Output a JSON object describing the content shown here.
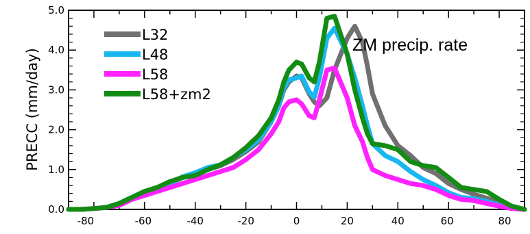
{
  "chart_data": {
    "type": "line",
    "title": "",
    "annotation": "ZM precip. rate",
    "xlabel": "",
    "ylabel": "PRECC (mm/day)",
    "xlim": [
      -90,
      90
    ],
    "ylim": [
      0,
      5
    ],
    "x_tick_labels": [
      "-80",
      "-60",
      "-40",
      "-20",
      "0",
      "20",
      "40",
      "60",
      "80"
    ],
    "x_tick_values": [
      -80,
      -60,
      -40,
      -20,
      0,
      20,
      40,
      60,
      80
    ],
    "y_tick_labels": [
      "0.0",
      "1.0",
      "2.0",
      "3.0",
      "4.0",
      "5.0"
    ],
    "y_tick_values": [
      0,
      1,
      2,
      3,
      4,
      5
    ],
    "legend_position": "top-left",
    "x": [
      -90,
      -85,
      -80,
      -75,
      -70,
      -65,
      -60,
      -55,
      -50,
      -45,
      -40,
      -35,
      -30,
      -25,
      -20,
      -15,
      -10,
      -7,
      -5,
      -3,
      0,
      2,
      5,
      7,
      9,
      12,
      15,
      20,
      23,
      26,
      28,
      30,
      35,
      40,
      45,
      50,
      55,
      60,
      65,
      70,
      75,
      80,
      85,
      90
    ],
    "series": [
      {
        "name": "L32",
        "color": "#707070",
        "values": [
          0.0,
          0.0,
          0.02,
          0.05,
          0.15,
          0.3,
          0.45,
          0.55,
          0.65,
          0.8,
          0.88,
          1.0,
          1.1,
          1.25,
          1.45,
          1.7,
          2.2,
          2.6,
          3.0,
          3.2,
          3.35,
          3.3,
          2.9,
          2.7,
          2.6,
          2.8,
          3.5,
          4.3,
          4.6,
          4.2,
          3.6,
          2.9,
          2.1,
          1.6,
          1.35,
          1.05,
          0.9,
          0.65,
          0.5,
          0.38,
          0.28,
          0.18,
          0.05,
          0.0
        ]
      },
      {
        "name": "L48",
        "color": "#19b7ef",
        "values": [
          0.0,
          0.0,
          0.02,
          0.05,
          0.15,
          0.3,
          0.45,
          0.55,
          0.65,
          0.82,
          0.92,
          1.05,
          1.12,
          1.3,
          1.5,
          1.75,
          2.2,
          2.6,
          3.05,
          3.25,
          3.3,
          3.35,
          2.95,
          2.82,
          3.3,
          4.3,
          4.55,
          3.9,
          3.3,
          2.6,
          2.1,
          1.65,
          1.35,
          1.2,
          0.95,
          0.75,
          0.6,
          0.42,
          0.3,
          0.27,
          0.2,
          0.1,
          0.02,
          0.0
        ]
      },
      {
        "name": "L58",
        "color": "#ff22ff",
        "values": [
          0.0,
          0.0,
          0.02,
          0.05,
          0.1,
          0.25,
          0.35,
          0.45,
          0.55,
          0.65,
          0.75,
          0.85,
          0.95,
          1.05,
          1.25,
          1.5,
          1.9,
          2.2,
          2.55,
          2.7,
          2.75,
          2.65,
          2.35,
          2.3,
          2.75,
          3.5,
          3.55,
          2.8,
          2.1,
          1.7,
          1.3,
          1.0,
          0.85,
          0.75,
          0.65,
          0.6,
          0.5,
          0.35,
          0.25,
          0.22,
          0.15,
          0.08,
          0.02,
          0.0
        ]
      },
      {
        "name": "L58+zm2",
        "color": "#138c13",
        "values": [
          0.0,
          0.0,
          0.02,
          0.05,
          0.15,
          0.3,
          0.45,
          0.55,
          0.7,
          0.8,
          0.85,
          1.0,
          1.12,
          1.3,
          1.55,
          1.85,
          2.3,
          2.75,
          3.2,
          3.5,
          3.7,
          3.65,
          3.3,
          3.2,
          3.7,
          4.8,
          4.85,
          3.9,
          3.0,
          2.3,
          1.9,
          1.65,
          1.6,
          1.5,
          1.2,
          1.1,
          1.05,
          0.8,
          0.55,
          0.5,
          0.45,
          0.25,
          0.08,
          0.0
        ]
      }
    ]
  }
}
